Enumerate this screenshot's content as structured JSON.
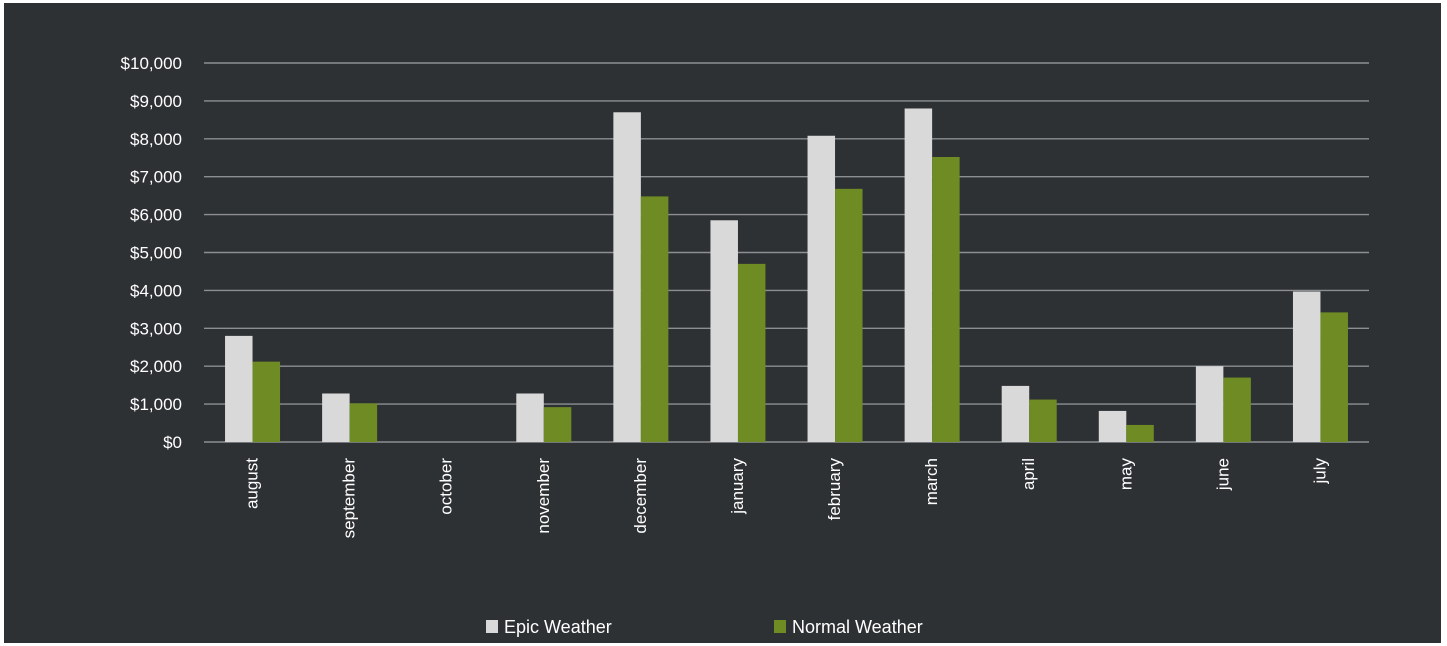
{
  "chart_data": {
    "type": "bar",
    "categories": [
      "august",
      "september",
      "october",
      "november",
      "december",
      "january",
      "february",
      "march",
      "april",
      "may",
      "june",
      "july"
    ],
    "series": [
      {
        "name": "Epic Weather",
        "color": "#d9d9d9",
        "values": [
          2800,
          1280,
          0,
          1280,
          8700,
          5850,
          8080,
          8800,
          1480,
          820,
          2000,
          3970
        ]
      },
      {
        "name": "Normal Weather",
        "color": "#6e8b24",
        "values": [
          2120,
          1020,
          0,
          920,
          6480,
          4700,
          6680,
          7520,
          1120,
          450,
          1700,
          3420
        ]
      }
    ],
    "yticks": [
      "$0",
      "$1,000",
      "$2,000",
      "$3,000",
      "$4,000",
      "$5,000",
      "$6,000",
      "$7,000",
      "$8,000",
      "$9,000",
      "$10,000"
    ],
    "ylim": [
      0,
      10000
    ],
    "grid": true,
    "legend": "bottom-center",
    "colors": {
      "background": "#2e3134",
      "gridline": "#8c8f92",
      "text": "#ffffff"
    }
  }
}
